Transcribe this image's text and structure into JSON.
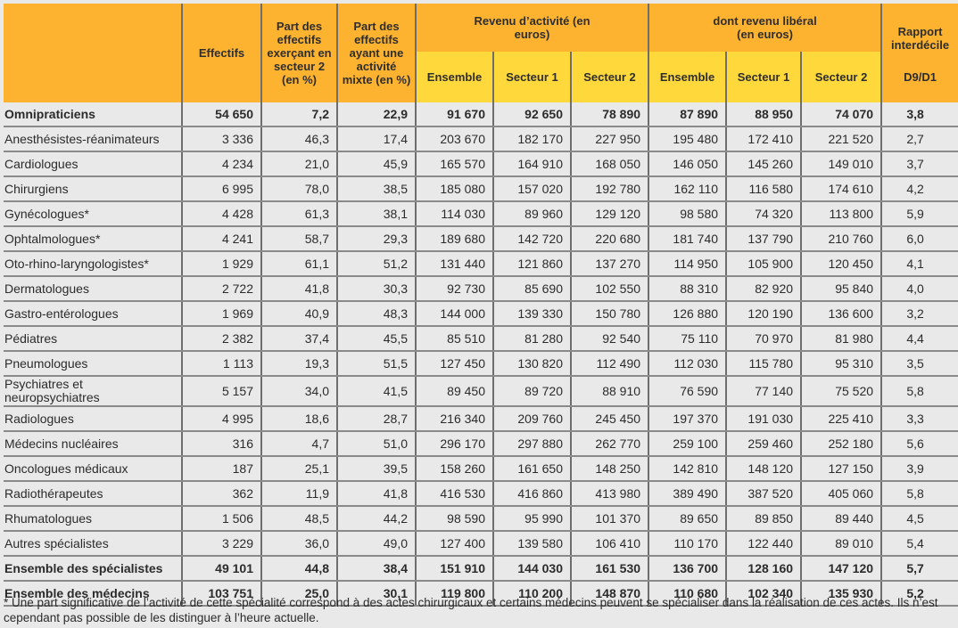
{
  "headers": {
    "effectifs": "Effectifs",
    "part_secteur2": "Part des effectifs exerçant en secteur 2 (en %)",
    "part_mixte": "Part des effectifs ayant une activité mixte (en %)",
    "revenu_activite": "Revenu d’activité (en euros)",
    "revenu_liberal": "dont revenu libéral (en euros)",
    "rapport": "Rapport interdécile",
    "d9d1": "D9/D1",
    "ensemble": "Ensemble",
    "secteur1": "Secteur 1",
    "secteur2": "Secteur 2"
  },
  "rows": [
    {
      "label": "Omnipraticiens",
      "bold": true,
      "values": [
        "54 650",
        "7,2",
        "22,9",
        "91 670",
        "92 650",
        "78 890",
        "87 890",
        "88 950",
        "74 070",
        "3,8"
      ]
    },
    {
      "label": "Anesthésistes-réanimateurs",
      "values": [
        "3 336",
        "46,3",
        "17,4",
        "203 670",
        "182 170",
        "227 950",
        "195 480",
        "172 410",
        "221 520",
        "2,7"
      ]
    },
    {
      "label": "Cardiologues",
      "values": [
        "4 234",
        "21,0",
        "45,9",
        "165 570",
        "164 910",
        "168 050",
        "146 050",
        "145 260",
        "149 010",
        "3,7"
      ]
    },
    {
      "label": "Chirurgiens",
      "values": [
        "6 995",
        "78,0",
        "38,5",
        "185 080",
        "157 020",
        "192 780",
        "162 110",
        "116 580",
        "174 610",
        "4,2"
      ]
    },
    {
      "label": "Gynécologues*",
      "values": [
        "4 428",
        "61,3",
        "38,1",
        "114 030",
        "89 960",
        "129 120",
        "98 580",
        "74 320",
        "113 800",
        "5,9"
      ]
    },
    {
      "label": "Ophtalmologues*",
      "values": [
        "4 241",
        "58,7",
        "29,3",
        "189 680",
        "142 720",
        "220 680",
        "181 740",
        "137 790",
        "210 760",
        "6,0"
      ]
    },
    {
      "label": "Oto-rhino-laryngologistes*",
      "values": [
        "1 929",
        "61,1",
        "51,2",
        "131 440",
        "121 860",
        "137 270",
        "114 950",
        "105 900",
        "120 450",
        "4,1"
      ]
    },
    {
      "label": "Dermatologues",
      "values": [
        "2 722",
        "41,8",
        "30,3",
        "92 730",
        "85 690",
        "102 550",
        "88 310",
        "82 920",
        "95 840",
        "4,0"
      ]
    },
    {
      "label": "Gastro-entérologues",
      "values": [
        "1 969",
        "40,9",
        "48,3",
        "144 000",
        "139 330",
        "150 780",
        "126 880",
        "120 190",
        "136 600",
        "3,2"
      ]
    },
    {
      "label": "Pédiatres",
      "values": [
        "2 382",
        "37,4",
        "45,5",
        "85 510",
        "81 280",
        "92 540",
        "75 110",
        "70 970",
        "81 980",
        "4,4"
      ]
    },
    {
      "label": "Pneumologues",
      "values": [
        "1 113",
        "19,3",
        "51,5",
        "127 450",
        "130 820",
        "112 490",
        "112 030",
        "115 780",
        "95 310",
        "3,5"
      ]
    },
    {
      "label": "Psychiatres et neuropsychiatres",
      "tall": true,
      "values": [
        "5 157",
        "34,0",
        "41,5",
        "89 450",
        "89 720",
        "88 910",
        "76 590",
        "77 140",
        "75 520",
        "5,8"
      ]
    },
    {
      "label": "Radiologues",
      "values": [
        "4 995",
        "18,6",
        "28,7",
        "216 340",
        "209 760",
        "245 450",
        "197 370",
        "191 030",
        "225 410",
        "3,3"
      ]
    },
    {
      "label": "Médecins nucléaires",
      "values": [
        "316",
        "4,7",
        "51,0",
        "296 170",
        "297 880",
        "262 770",
        "259 100",
        "259 460",
        "252 180",
        "5,6"
      ]
    },
    {
      "label": "Oncologues médicaux",
      "values": [
        "187",
        "25,1",
        "39,5",
        "158 260",
        "161 650",
        "148 250",
        "142 810",
        "148 120",
        "127 150",
        "3,9"
      ]
    },
    {
      "label": "Radiothérapeutes",
      "values": [
        "362",
        "11,9",
        "41,8",
        "416 530",
        "416 860",
        "413 980",
        "389 490",
        "387 520",
        "405 060",
        "5,8"
      ]
    },
    {
      "label": "Rhumatologues",
      "values": [
        "1 506",
        "48,5",
        "44,2",
        "98 590",
        "95 990",
        "101 370",
        "89 650",
        "89 850",
        "89 440",
        "4,5"
      ]
    },
    {
      "label": "Autres spécialistes",
      "values": [
        "3 229",
        "36,0",
        "49,0",
        "127 400",
        "139 580",
        "106 410",
        "110 170",
        "122 440",
        "89 010",
        "5,4"
      ]
    },
    {
      "label": "Ensemble des spécialistes",
      "bold": true,
      "values": [
        "49 101",
        "44,8",
        "38,4",
        "151 910",
        "144 030",
        "161 530",
        "136 700",
        "128 160",
        "147 120",
        "5,7"
      ]
    },
    {
      "label": "Ensemble des médecins",
      "bold": true,
      "values": [
        "103 751",
        "25,0",
        "30,1",
        "119 800",
        "110 200",
        "148 870",
        "110 680",
        "102 340",
        "135 930",
        "5,2"
      ]
    }
  ],
  "footnote": "* Une part significative de l’activité de cette spécialité correspond à des actes chirurgicaux et certains médecins peuvent se spécialiser dans la réalisation de ces actes. Ils n’est cependant pas possible de les distinguer à l’heure actuelle.",
  "colors": {
    "header_orange": "#feb330",
    "header_yellow": "#ffd83b",
    "background": "#e9e9e9"
  }
}
